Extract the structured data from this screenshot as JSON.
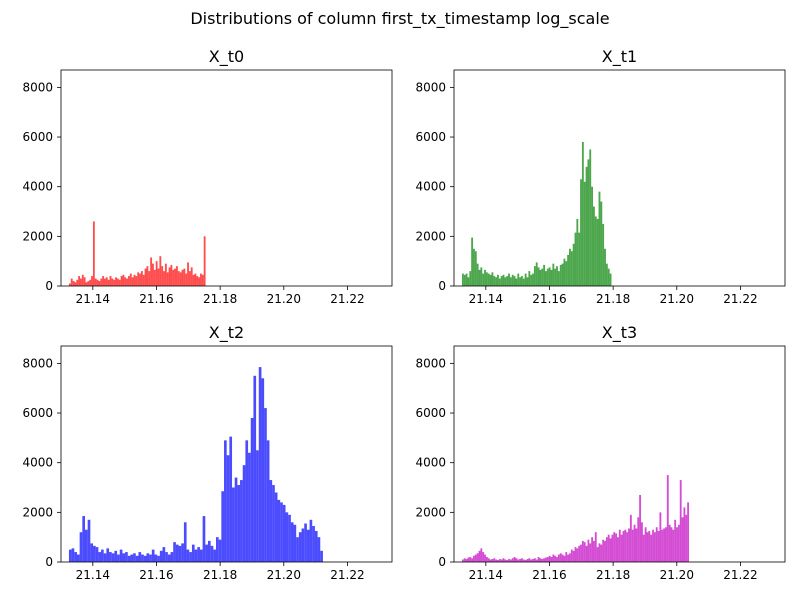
{
  "figure": {
    "suptitle": "Distributions of column first_tx_timestamp log_scale"
  },
  "chart_data": [
    {
      "type": "bar",
      "title": "X_t0",
      "color": "#ff0000",
      "xlim": [
        21.13,
        21.234
      ],
      "ylim": [
        0,
        8700
      ],
      "xticks": [
        21.14,
        21.16,
        21.18,
        21.2,
        21.22
      ],
      "xtick_labels": [
        "21.14",
        "21.16",
        "21.18",
        "21.20",
        "21.22"
      ],
      "yticks": [
        0,
        2000,
        4000,
        6000,
        8000
      ],
      "ytick_labels": [
        "0",
        "2000",
        "4000",
        "6000",
        "8000"
      ],
      "bin_start": 21.1325,
      "bin_width": 0.00058,
      "values": [
        100,
        300,
        200,
        150,
        250,
        400,
        300,
        450,
        350,
        150,
        200,
        250,
        400,
        2600,
        300,
        250,
        200,
        300,
        400,
        300,
        350,
        250,
        400,
        300,
        250,
        350,
        300,
        250,
        400,
        450,
        350,
        300,
        400,
        500,
        350,
        450,
        400,
        550,
        500,
        600,
        450,
        700,
        800,
        600,
        1150,
        900,
        650,
        1000,
        700,
        1200,
        800,
        600,
        900,
        550,
        750,
        850,
        650,
        700,
        800,
        600,
        550,
        650,
        700,
        500,
        950,
        600,
        750,
        450,
        500,
        400,
        350,
        500,
        450,
        2000
      ]
    },
    {
      "type": "bar",
      "title": "X_t1",
      "color": "#008000",
      "xlim": [
        21.13,
        21.234
      ],
      "ylim": [
        0,
        8700
      ],
      "xticks": [
        21.14,
        21.16,
        21.18,
        21.2,
        21.22
      ],
      "xtick_labels": [
        "21.14",
        "21.16",
        "21.18",
        "21.20",
        "21.22"
      ],
      "yticks": [
        0,
        2000,
        4000,
        6000,
        8000
      ],
      "ytick_labels": [
        "0",
        "2000",
        "4000",
        "6000",
        "8000"
      ],
      "bin_start": 21.1325,
      "bin_width": 0.00058,
      "values": [
        500,
        450,
        500,
        350,
        600,
        1950,
        1500,
        1400,
        900,
        650,
        750,
        500,
        650,
        550,
        500,
        450,
        550,
        400,
        350,
        450,
        300,
        400,
        450,
        350,
        400,
        500,
        350,
        450,
        400,
        300,
        500,
        350,
        400,
        300,
        500,
        350,
        600,
        450,
        500,
        800,
        950,
        750,
        650,
        700,
        850,
        600,
        700,
        750,
        650,
        900,
        700,
        800,
        600,
        850,
        900,
        1100,
        1000,
        1250,
        1500,
        1400,
        1700,
        2150,
        2700,
        2150,
        4300,
        5800,
        4200,
        4800,
        5100,
        5500,
        4000,
        3200,
        2800,
        2700,
        3800,
        3400,
        2500,
        1500,
        900,
        700,
        500
      ]
    },
    {
      "type": "bar",
      "title": "X_t2",
      "color": "#0000ff",
      "xlim": [
        21.13,
        21.234
      ],
      "ylim": [
        0,
        8700
      ],
      "xticks": [
        21.14,
        21.16,
        21.18,
        21.2,
        21.22
      ],
      "xtick_labels": [
        "21.14",
        "21.16",
        "21.18",
        "21.20",
        "21.22"
      ],
      "yticks": [
        0,
        2000,
        4000,
        6000,
        8000
      ],
      "ytick_labels": [
        "0",
        "2000",
        "4000",
        "6000",
        "8000"
      ],
      "bin_start": 21.1325,
      "bin_width": 0.00084,
      "values": [
        500,
        550,
        400,
        300,
        1200,
        1850,
        1300,
        1700,
        750,
        650,
        600,
        400,
        500,
        350,
        550,
        400,
        350,
        450,
        300,
        500,
        350,
        400,
        250,
        300,
        350,
        250,
        400,
        300,
        250,
        350,
        300,
        500,
        300,
        250,
        450,
        600,
        400,
        300,
        400,
        800,
        700,
        650,
        750,
        1600,
        500,
        400,
        700,
        500,
        600,
        500,
        1850,
        700,
        850,
        650,
        500,
        1000,
        900,
        2850,
        4900,
        4300,
        5050,
        3000,
        3400,
        3100,
        3300,
        3900,
        4900,
        4400,
        5800,
        7500,
        4500,
        7850,
        7400,
        6200,
        4900,
        3300,
        3100,
        2800,
        2500,
        2400,
        2300,
        2000,
        1900,
        1600,
        1500,
        1000,
        1200,
        1350,
        1550,
        1300,
        1700,
        1450,
        1250,
        1000,
        450
      ]
    },
    {
      "type": "bar",
      "title": "X_t3",
      "color": "#c000c0",
      "xlim": [
        21.13,
        21.234
      ],
      "ylim": [
        0,
        8700
      ],
      "xticks": [
        21.14,
        21.16,
        21.18,
        21.2,
        21.22
      ],
      "xtick_labels": [
        "21.14",
        "21.16",
        "21.18",
        "21.20",
        "21.22"
      ],
      "yticks": [
        0,
        2000,
        4000,
        6000,
        8000
      ],
      "ytick_labels": [
        "0",
        "2000",
        "4000",
        "6000",
        "8000"
      ],
      "bin_start": 21.1325,
      "bin_width": 0.00058,
      "values": [
        100,
        150,
        120,
        180,
        200,
        150,
        250,
        300,
        350,
        450,
        550,
        400,
        300,
        200,
        150,
        100,
        120,
        150,
        100,
        80,
        120,
        100,
        150,
        100,
        80,
        120,
        100,
        150,
        200,
        150,
        100,
        120,
        150,
        100,
        80,
        120,
        150,
        100,
        120,
        150,
        100,
        200,
        150,
        120,
        150,
        180,
        200,
        250,
        200,
        300,
        250,
        200,
        300,
        350,
        300,
        250,
        400,
        300,
        350,
        500,
        450,
        600,
        550,
        650,
        700,
        850,
        800,
        650,
        900,
        750,
        1000,
        850,
        1200,
        600,
        750,
        700,
        900,
        850,
        1000,
        1100,
        950,
        1100,
        1200,
        1150,
        1000,
        1300,
        1100,
        1250,
        1300,
        1200,
        1350,
        1900,
        1300,
        1500,
        1350,
        1800,
        2700,
        1600,
        1100,
        1400,
        1200,
        1250,
        1100,
        1300,
        1200,
        1400,
        1250,
        2000,
        1300,
        1350,
        1400,
        3500,
        1500,
        1400,
        1300,
        1700,
        1400,
        1500,
        3300,
        1800,
        2200,
        1900,
        2400
      ]
    }
  ]
}
